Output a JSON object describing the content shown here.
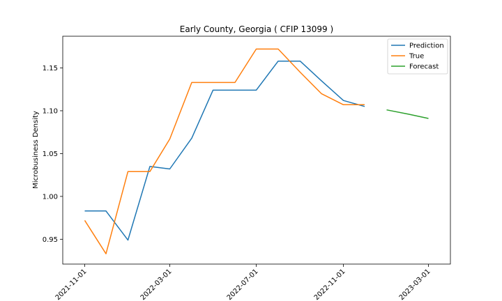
{
  "chart_data": {
    "type": "line",
    "title": "Early County, Georgia ( CFIP 13099 )",
    "xlabel": "",
    "ylabel": "Microbusiness Density",
    "ylim": [
      0.921,
      1.187
    ],
    "x_tick_labels": [
      "2021-11-01",
      "2022-03-01",
      "2022-07-01",
      "2022-11-01",
      "2023-03-01"
    ],
    "y_ticks": [
      0.95,
      1.0,
      1.05,
      1.1,
      1.15
    ],
    "y_tick_labels": [
      "0.95",
      "1.00",
      "1.05",
      "1.10",
      "1.15"
    ],
    "x_range": [
      "2021-10-01",
      "2023-04-01"
    ],
    "legend_position": "top-right",
    "series": [
      {
        "name": "Prediction",
        "color": "#1f77b4",
        "x": [
          "2021-11-01",
          "2021-12-01",
          "2022-01-01",
          "2022-02-01",
          "2022-03-01",
          "2022-04-01",
          "2022-05-01",
          "2022-06-01",
          "2022-07-01",
          "2022-08-01",
          "2022-09-01",
          "2022-10-01",
          "2022-11-01",
          "2022-12-01"
        ],
        "values": [
          0.983,
          0.983,
          0.949,
          1.035,
          1.032,
          1.068,
          1.124,
          1.124,
          1.124,
          1.158,
          1.158,
          1.135,
          1.112,
          1.105
        ]
      },
      {
        "name": "True",
        "color": "#ff7f0e",
        "x": [
          "2021-11-01",
          "2021-12-01",
          "2022-01-01",
          "2022-02-01",
          "2022-03-01",
          "2022-04-01",
          "2022-05-01",
          "2022-06-01",
          "2022-07-01",
          "2022-08-01",
          "2022-09-01",
          "2022-10-01",
          "2022-11-01",
          "2022-12-01"
        ],
        "values": [
          0.972,
          0.933,
          1.029,
          1.029,
          1.067,
          1.133,
          1.133,
          1.133,
          1.172,
          1.172,
          1.145,
          1.12,
          1.107,
          1.107
        ]
      },
      {
        "name": "Forecast",
        "color": "#2ca02c",
        "x": [
          "2023-01-01",
          "2023-02-01",
          "2023-03-01"
        ],
        "values": [
          1.101,
          1.096,
          1.091
        ]
      }
    ]
  }
}
